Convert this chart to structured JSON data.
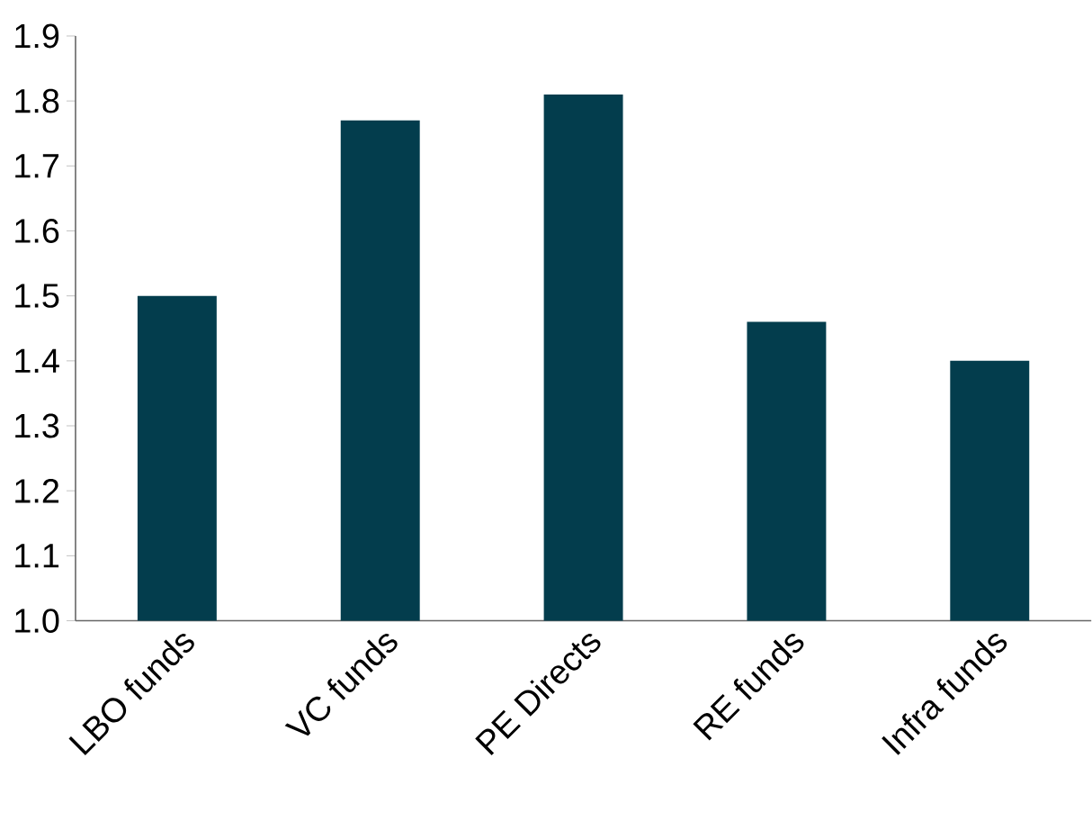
{
  "chart_data": {
    "type": "bar",
    "categories": [
      "LBO funds",
      "VC funds",
      "PE Directs",
      "RE funds",
      "Infra funds"
    ],
    "values": [
      1.5,
      1.77,
      1.81,
      1.46,
      1.4
    ],
    "color": "#033d4d",
    "ylim": [
      1.0,
      1.9
    ],
    "yticks": [
      {
        "value": 1.0,
        "label": "1.0"
      },
      1.1,
      1.2,
      1.3,
      1.4,
      1.5,
      1.6,
      1.7,
      1.8,
      1.9
    ]
  }
}
